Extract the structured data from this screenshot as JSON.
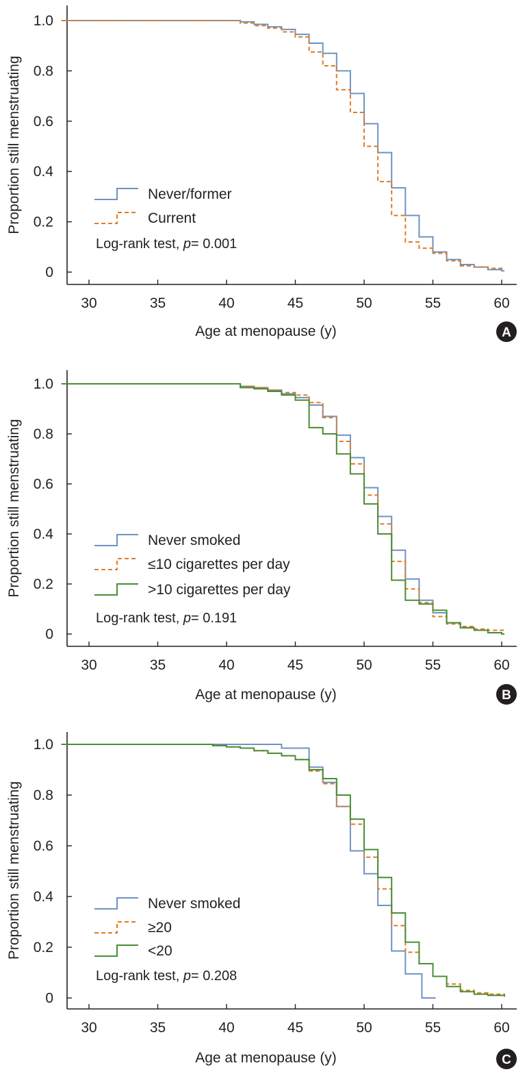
{
  "colors": {
    "blue": "#6d93c2",
    "orange": "#de7b25",
    "green": "#4b8c34",
    "axis": "#231f20",
    "badge": "#231f20"
  },
  "chart_data": [
    {
      "id": "A",
      "type": "line",
      "subtype": "kaplan-meier step",
      "panel_label": "A",
      "xlabel": "Age at menopause (y)",
      "ylabel": "Proportion still menstruating",
      "xlim": [
        28,
        61
      ],
      "ylim": [
        -0.05,
        1.06
      ],
      "xticks": [
        30,
        35,
        40,
        45,
        50,
        55,
        60
      ],
      "xtick_labels": [
        "30",
        "35",
        "40",
        "45",
        "50",
        "55",
        "60"
      ],
      "yticks": [
        0,
        0.2,
        0.4,
        0.6,
        0.8,
        1.0
      ],
      "ytick_labels": [
        "0",
        "0.2",
        "0.4",
        "0.6",
        "0.8",
        "1.0"
      ],
      "legend_position": "lower-left",
      "stat_prefix": "Log-rank test, ",
      "stat_p": "p",
      "stat_value": "= 0.001",
      "series": [
        {
          "name": "Never/former",
          "color_key": "blue",
          "dash": "solid",
          "x": [
            28,
            41,
            42,
            43,
            44,
            45,
            46,
            47,
            48,
            49,
            50,
            51,
            52,
            53,
            54,
            55,
            56,
            57,
            58,
            59,
            60
          ],
          "y": [
            1.0,
            0.995,
            0.985,
            0.975,
            0.965,
            0.945,
            0.91,
            0.87,
            0.8,
            0.71,
            0.59,
            0.475,
            0.335,
            0.225,
            0.14,
            0.08,
            0.05,
            0.03,
            0.02,
            0.01,
            0.005
          ]
        },
        {
          "name": "Current",
          "color_key": "orange",
          "dash": "dashed",
          "x": [
            28,
            41,
            42,
            43,
            44,
            45,
            46,
            47,
            48,
            49,
            50,
            51,
            52,
            53,
            54,
            55,
            56,
            57,
            58,
            59,
            60
          ],
          "y": [
            1.0,
            0.99,
            0.98,
            0.97,
            0.955,
            0.935,
            0.875,
            0.82,
            0.725,
            0.635,
            0.5,
            0.36,
            0.225,
            0.12,
            0.095,
            0.075,
            0.045,
            0.025,
            0.02,
            0.015,
            0.015
          ]
        }
      ]
    },
    {
      "id": "B",
      "type": "line",
      "subtype": "kaplan-meier step",
      "panel_label": "B",
      "xlabel": "Age at menopause (y)",
      "ylabel": "Proportion still menstruating",
      "xlim": [
        28,
        61
      ],
      "ylim": [
        -0.05,
        1.06
      ],
      "xticks": [
        30,
        35,
        40,
        45,
        50,
        55,
        60
      ],
      "xtick_labels": [
        "30",
        "35",
        "40",
        "45",
        "50",
        "55",
        "60"
      ],
      "yticks": [
        0,
        0.2,
        0.4,
        0.6,
        0.8,
        1.0
      ],
      "ytick_labels": [
        "0",
        "0.2",
        "0.4",
        "0.6",
        "0.8",
        "1.0"
      ],
      "legend_position": "lower-left",
      "stat_prefix": "Log-rank test, ",
      "stat_p": "p",
      "stat_value": "= 0.191",
      "series": [
        {
          "name": "Never smoked",
          "color_key": "blue",
          "dash": "solid",
          "x": [
            28,
            41,
            42,
            43,
            44,
            45,
            46,
            47,
            48,
            49,
            50,
            51,
            52,
            53,
            54,
            55,
            56,
            57,
            58,
            59,
            60
          ],
          "y": [
            1.0,
            0.99,
            0.985,
            0.975,
            0.96,
            0.945,
            0.915,
            0.87,
            0.795,
            0.705,
            0.585,
            0.47,
            0.335,
            0.22,
            0.135,
            0.085,
            0.045,
            0.025,
            0.015,
            0.005,
            0.0
          ]
        },
        {
          "name": "≤10 cigarettes per day",
          "color_key": "orange",
          "dash": "dashed",
          "x": [
            28,
            41,
            42,
            43,
            44,
            45,
            46,
            47,
            48,
            49,
            50,
            51,
            52,
            53,
            54,
            55,
            56,
            57,
            58,
            59,
            60
          ],
          "y": [
            1.0,
            0.99,
            0.985,
            0.975,
            0.965,
            0.955,
            0.925,
            0.865,
            0.77,
            0.68,
            0.555,
            0.44,
            0.29,
            0.18,
            0.125,
            0.07,
            0.04,
            0.03,
            0.02,
            0.015,
            0.015
          ]
        },
        {
          "name": ">10 cigarettes per day",
          "color_key": "green",
          "dash": "solid",
          "x": [
            28,
            41,
            42,
            43,
            44,
            45,
            46,
            47,
            48,
            49,
            50,
            51,
            52,
            53,
            54,
            55,
            56,
            57,
            58,
            59,
            60
          ],
          "y": [
            1.0,
            0.985,
            0.98,
            0.97,
            0.955,
            0.935,
            0.825,
            0.8,
            0.72,
            0.64,
            0.52,
            0.4,
            0.215,
            0.135,
            0.12,
            0.095,
            0.045,
            0.025,
            0.015,
            0.005,
            0.0
          ]
        }
      ]
    },
    {
      "id": "C",
      "type": "line",
      "subtype": "kaplan-meier step",
      "panel_label": "C",
      "xlabel": "Age at menopause (y)",
      "ylabel": "Proportion still menstruating",
      "xlim": [
        28,
        61
      ],
      "ylim": [
        -0.05,
        1.06
      ],
      "xticks": [
        30,
        35,
        40,
        45,
        50,
        55,
        60
      ],
      "xtick_labels": [
        "30",
        "35",
        "40",
        "45",
        "50",
        "55",
        "60"
      ],
      "yticks": [
        0,
        0.2,
        0.4,
        0.6,
        0.8,
        1.0
      ],
      "ytick_labels": [
        "0",
        "0.2",
        "0.4",
        "0.6",
        "0.8",
        "1.0"
      ],
      "legend_position": "lower-left",
      "stat_prefix": "Log-rank test, ",
      "stat_p": "p",
      "stat_value": "= 0.208",
      "series": [
        {
          "name": "Never smoked",
          "color_key": "blue",
          "dash": "solid",
          "x": [
            28,
            44,
            46,
            47,
            48,
            49,
            50,
            51,
            52,
            53,
            54.2
          ],
          "y": [
            1.0,
            0.985,
            0.91,
            0.85,
            0.755,
            0.58,
            0.49,
            0.365,
            0.185,
            0.095,
            0.0
          ]
        },
        {
          "name": "≥20",
          "color_key": "orange",
          "dash": "dashed",
          "x": [
            28,
            39,
            40,
            41,
            42,
            43,
            44,
            45,
            46,
            47,
            48,
            49,
            50,
            51,
            52,
            53,
            54,
            55,
            56,
            57,
            58,
            59,
            60.2
          ],
          "y": [
            1.0,
            0.995,
            0.99,
            0.985,
            0.975,
            0.965,
            0.955,
            0.94,
            0.895,
            0.845,
            0.755,
            0.685,
            0.555,
            0.43,
            0.285,
            0.18,
            0.135,
            0.085,
            0.055,
            0.03,
            0.02,
            0.015,
            0.01
          ]
        },
        {
          "name": "<20",
          "color_key": "green",
          "dash": "solid",
          "x": [
            28,
            39,
            40,
            41,
            42,
            43,
            44,
            45,
            46,
            47,
            48,
            49,
            50,
            51,
            52,
            53,
            54,
            55,
            56,
            57,
            58,
            59,
            60.2
          ],
          "y": [
            1.0,
            0.995,
            0.99,
            0.985,
            0.975,
            0.965,
            0.955,
            0.94,
            0.9,
            0.865,
            0.8,
            0.705,
            0.585,
            0.475,
            0.335,
            0.22,
            0.135,
            0.085,
            0.045,
            0.025,
            0.015,
            0.01,
            0.005
          ]
        }
      ]
    }
  ]
}
